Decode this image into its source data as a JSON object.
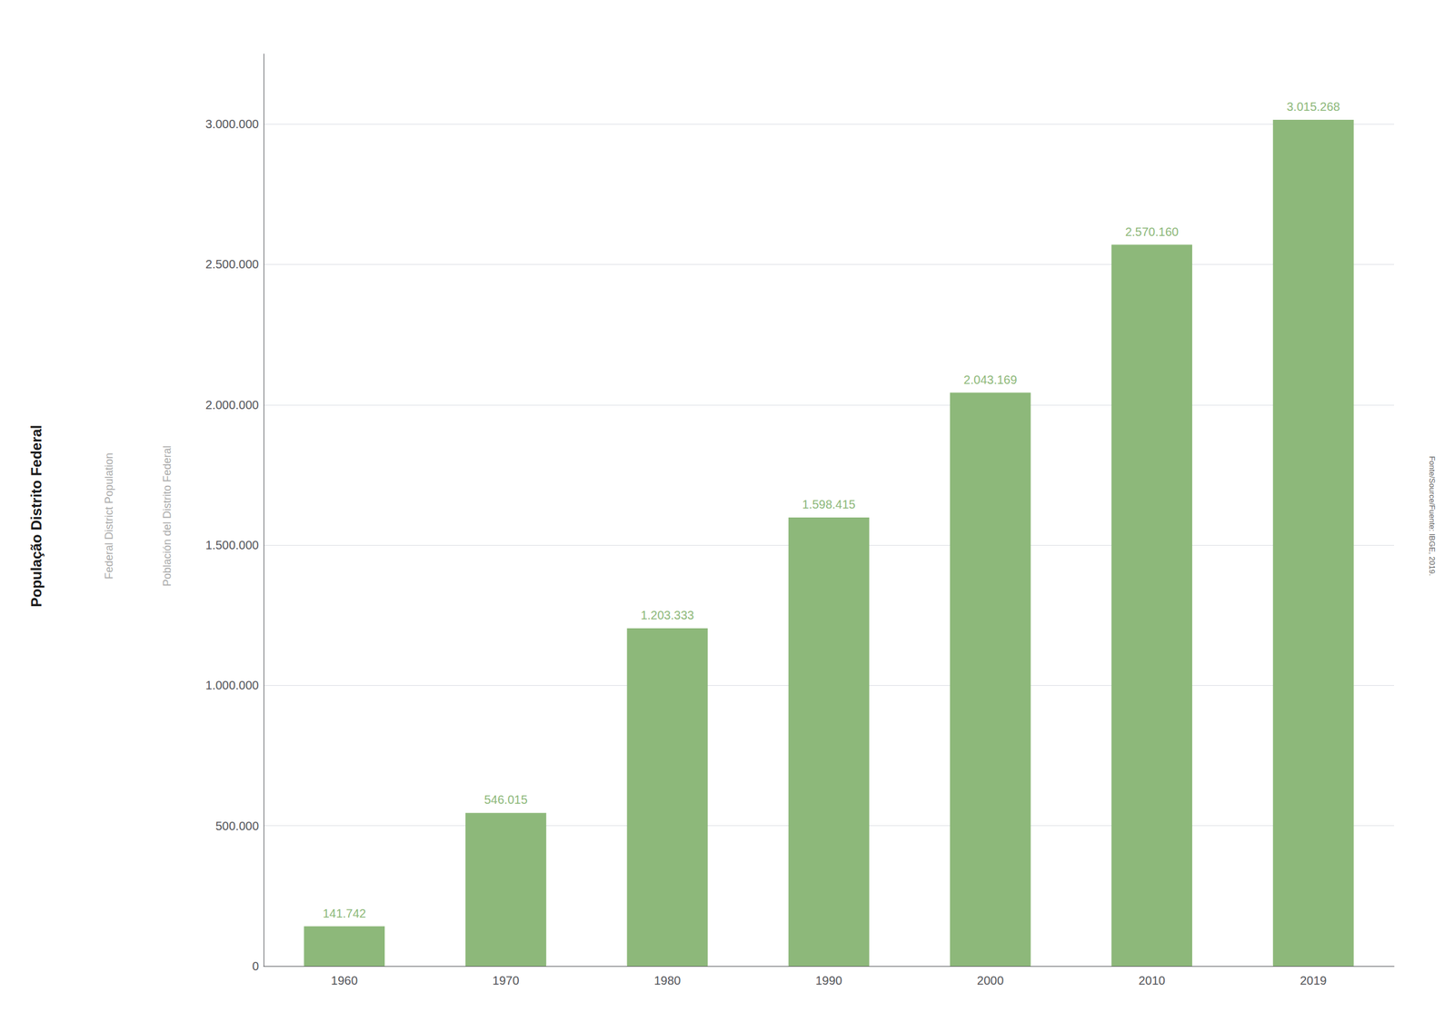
{
  "chart_data": {
    "type": "bar",
    "ylabel": "População Distrito Federal",
    "annotations": [
      "Federal District Population",
      "Población del Distrito Federal",
      "Fonte/Source/Fuente: IBGE, 2019."
    ],
    "categories": [
      "1960",
      "1970",
      "1980",
      "1990",
      "2000",
      "2010",
      "2019"
    ],
    "values": [
      141742,
      546015,
      1203333,
      1598415,
      2043169,
      2570160,
      3015268
    ],
    "value_labels": [
      "141.742",
      "546.015",
      "1.203.333",
      "1.598.415",
      "2.043.169",
      "2.570.160",
      "3.015.268"
    ],
    "data_labels": true,
    "color": "#8db87a",
    "ylim": [
      0,
      3250000
    ],
    "yticks": [
      0,
      {
        "value": 500000,
        "label": "500.000"
      },
      {
        "value": 1000000,
        "label": "1.000.000"
      },
      {
        "value": 1500000,
        "label": "1.500.000"
      },
      {
        "value": 2000000,
        "label": "2.000.000"
      },
      {
        "value": 2500000,
        "label": "2.500.000"
      },
      {
        "value": 3000000,
        "label": "3.000.000"
      }
    ],
    "grid": true
  }
}
